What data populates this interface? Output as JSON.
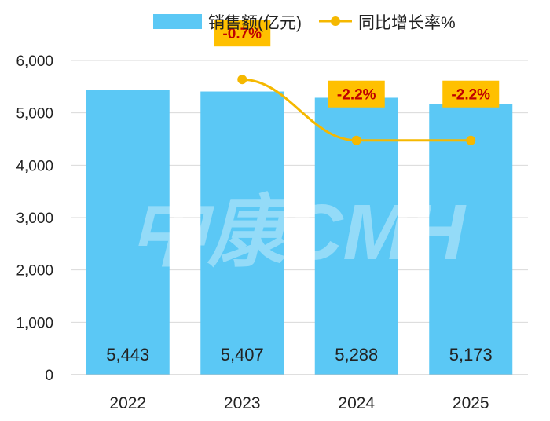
{
  "chart_data": {
    "type": "bar",
    "categories": [
      "2022",
      "2023",
      "2024",
      "2025"
    ],
    "series": [
      {
        "name": "销售额(亿元)",
        "type": "bar",
        "values": [
          5443,
          5407,
          5288,
          5173
        ],
        "value_labels": [
          "5,443",
          "5,407",
          "5,288",
          "5,173"
        ]
      },
      {
        "name": "同比增长率%",
        "type": "line",
        "values": [
          null,
          -0.7,
          -2.2,
          -2.2
        ],
        "value_labels": [
          "",
          "-0.7%",
          "-2.2%",
          "-2.2%"
        ]
      }
    ],
    "y_ticks": [
      "0",
      "1,000",
      "2,000",
      "3,000",
      "4,000",
      "5,000",
      "6,000"
    ],
    "ylim": [
      0,
      6000
    ],
    "legend_position": "top",
    "colors": {
      "bar": "#5bc8f5",
      "line": "#f5b800",
      "label_box": "#ffc000",
      "label_text": "#c00000"
    }
  },
  "watermark": "中康CMH"
}
